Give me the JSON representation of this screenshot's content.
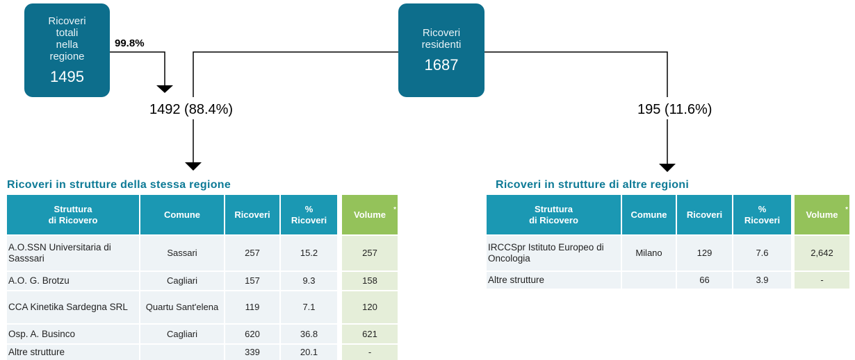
{
  "boxes": [
    {
      "lines": [
        "Ricoveri",
        "totali",
        "nella",
        "regione"
      ],
      "value": "1495"
    },
    {
      "lines": [
        "Ricoveri",
        "residenti"
      ],
      "value": "1687"
    }
  ],
  "flows": {
    "share": "99.8%",
    "same_region": "1492 (88.4%)",
    "other_regions": "195 (11.6%)"
  },
  "tables": [
    {
      "title": "Ricoveri in strutture della stessa regione",
      "header": [
        [
          "Struttura",
          "di Ricovero"
        ],
        [
          "Comune"
        ],
        [
          "Ricoveri"
        ],
        [
          "%",
          "Ricoveri"
        ],
        [
          "Volume"
        ]
      ],
      "footnote_mark": "*",
      "rows": [
        [
          "A.O.SSN Universitaria di Sasssari",
          "Sassari",
          "257",
          "15.2",
          "257"
        ],
        [
          "A.O. G. Brotzu",
          "Cagliari",
          "157",
          "9.3",
          "158"
        ],
        [
          "CCA Kinetika Sardegna SRL",
          "Quartu Sant'elena",
          "119",
          "7.1",
          "120"
        ],
        [
          "Osp. A. Businco",
          "Cagliari",
          "620",
          "36.8",
          "621"
        ],
        [
          "Altre strutture",
          "",
          "339",
          "20.1",
          "-"
        ]
      ]
    },
    {
      "title": "Ricoveri in strutture di altre regioni",
      "header": [
        [
          "Struttura",
          "di Ricovero"
        ],
        [
          "Comune"
        ],
        [
          "Ricoveri"
        ],
        [
          "%",
          "Ricoveri"
        ],
        [
          "Volume"
        ]
      ],
      "footnote_mark": "*",
      "rows": [
        [
          "IRCCSpr Istituto Europeo di Oncologia",
          "Milano",
          "129",
          "7.6",
          "2,642"
        ],
        [
          "Altre strutture",
          "",
          "66",
          "3.9",
          "-"
        ]
      ]
    }
  ]
}
